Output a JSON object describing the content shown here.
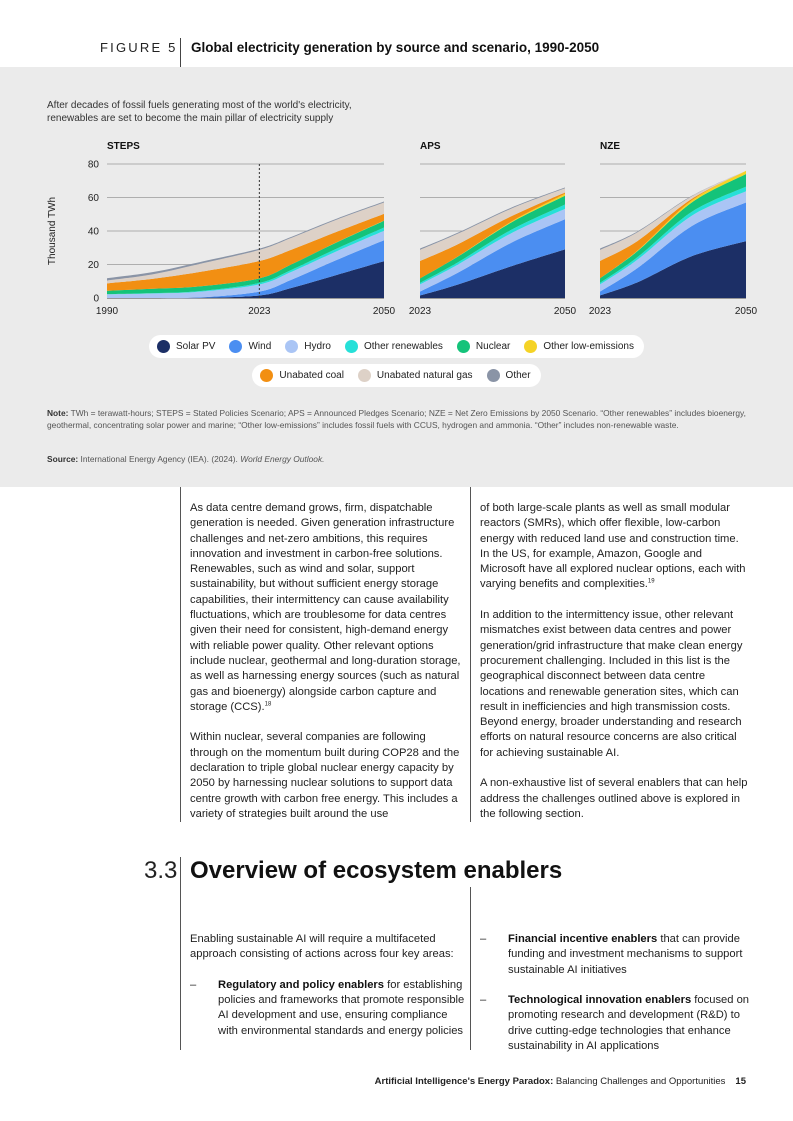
{
  "figure": {
    "label": "FIGURE 5",
    "title": "Global electricity generation by source and scenario, 1990-2050",
    "subtitle": "After decades of fossil fuels generating most of the world's electricity, renewables are set to become the main pillar of electricity supply",
    "note_label": "Note:",
    "note_text": "TWh = terawatt-hours; STEPS = Stated Policies Scenario; APS = Announced Pledges Scenario; NZE = Net Zero Emissions by 2050 Scenario. “Other renewables” includes bioenergy, geothermal, concentrating solar power and marine; “Other low-emissions” includes fossil fuels with CCUS, hydrogen and ammonia. “Other” includes non-renewable waste.",
    "source_label": "Source:",
    "source_text": "International Energy Agency (IEA). (2024). ",
    "source_italic": "World Energy Outlook."
  },
  "chart_data": {
    "type": "area",
    "stacked": true,
    "ylabel": "Thousand TWh",
    "ylim": [
      0,
      80
    ],
    "yticks": [
      0,
      20,
      40,
      60,
      80
    ],
    "grid": true,
    "legend_position": "bottom",
    "series_names": [
      "Solar PV",
      "Wind",
      "Hydro",
      "Other renewables",
      "Nuclear",
      "Other low-emissions",
      "Unabated coal",
      "Unabated natural gas",
      "Other"
    ],
    "colors": [
      "#1c2f66",
      "#4b8ef1",
      "#aac5f5",
      "#26e0d8",
      "#14c37a",
      "#f5d326",
      "#f28f12",
      "#ddd1c7",
      "#8a94a6"
    ],
    "panels": [
      {
        "name": "STEPS",
        "x": [
          1990,
          2000,
          2010,
          2023,
          2030,
          2040,
          2050
        ],
        "xtick_labels": [
          "1990",
          "2023",
          "2050"
        ],
        "marker_year": 2023,
        "series": [
          {
            "name": "Solar PV",
            "values": [
              0,
              0,
              0,
              1.5,
              6,
              14,
              22
            ]
          },
          {
            "name": "Wind",
            "values": [
              0,
              0,
              0.3,
              2.3,
              5,
              9,
              12.5
            ]
          },
          {
            "name": "Hydro",
            "values": [
              2.2,
              2.7,
              3.4,
              4.3,
              4.7,
              5.2,
              5.6
            ]
          },
          {
            "name": "Other renewables",
            "values": [
              0.1,
              0.2,
              0.4,
              0.9,
              1.2,
              1.6,
              2
            ]
          },
          {
            "name": "Nuclear",
            "values": [
              2,
              2.6,
              2.8,
              2.7,
              3.2,
              3.7,
              4
            ]
          },
          {
            "name": "Other low-emissions",
            "values": [
              0,
              0,
              0,
              0,
              0,
              0.05,
              0.1
            ]
          },
          {
            "name": "Unabated coal",
            "values": [
              4.4,
              6,
              8.6,
              10.4,
              8.8,
              6.2,
              4
            ]
          },
          {
            "name": "Unabated natural gas",
            "values": [
              1.7,
              2.7,
              4.8,
              6.6,
              7.1,
              7.3,
              6.8
            ]
          },
          {
            "name": "Other",
            "values": [
              1.4,
              1.3,
              1.1,
              0.8,
              0.6,
              0.6,
              0.6
            ]
          }
        ]
      },
      {
        "name": "APS",
        "x": [
          2023,
          2030,
          2040,
          2050
        ],
        "xtick_labels": [
          "2023",
          "2050"
        ],
        "series": [
          {
            "name": "Solar PV",
            "values": [
              1.5,
              8,
              19,
              29
            ]
          },
          {
            "name": "Wind",
            "values": [
              2.3,
              7,
              14,
              18
            ]
          },
          {
            "name": "Hydro",
            "values": [
              4.3,
              4.9,
              5.7,
              6.2
            ]
          },
          {
            "name": "Other renewables",
            "values": [
              0.9,
              1.3,
              2,
              2.6
            ]
          },
          {
            "name": "Nuclear",
            "values": [
              2.7,
              3.4,
              4.4,
              5.2
            ]
          },
          {
            "name": "Other low-emissions",
            "values": [
              0,
              0.1,
              0.5,
              1.2
            ]
          },
          {
            "name": "Unabated coal",
            "values": [
              10.4,
              7.3,
              3.2,
              0.8
            ]
          },
          {
            "name": "Unabated natural gas",
            "values": [
              6.6,
              6.3,
              4.6,
              2.5
            ]
          },
          {
            "name": "Other",
            "values": [
              0.8,
              0.6,
              0.6,
              0.5
            ]
          }
        ]
      },
      {
        "name": "NZE",
        "x": [
          2023,
          2030,
          2040,
          2050
        ],
        "xtick_labels": [
          "2023",
          "2050"
        ],
        "series": [
          {
            "name": "Solar PV",
            "values": [
              1.5,
              9.5,
              25,
              34
            ]
          },
          {
            "name": "Wind",
            "values": [
              2.3,
              8.5,
              18,
              23
            ]
          },
          {
            "name": "Hydro",
            "values": [
              4.3,
              5.1,
              6.2,
              6.7
            ]
          },
          {
            "name": "Other renewables",
            "values": [
              0.9,
              1.5,
              2.3,
              2.8
            ]
          },
          {
            "name": "Nuclear",
            "values": [
              2.7,
              3.6,
              5.6,
              7.5
            ]
          },
          {
            "name": "Other low-emissions",
            "values": [
              0,
              0.3,
              1.2,
              2
            ]
          },
          {
            "name": "Unabated coal",
            "values": [
              10.4,
              5.7,
              0.9,
              0
            ]
          },
          {
            "name": "Unabated natural gas",
            "values": [
              6.6,
              5.2,
              1.6,
              0
            ]
          },
          {
            "name": "Other",
            "values": [
              0.8,
              0.5,
              0.2,
              0
            ]
          }
        ]
      }
    ]
  },
  "col_left": {
    "p1": "As data centre demand grows, firm, dispatchable generation is needed. Given generation infrastructure challenges and net-zero ambitions, this requires innovation and investment in carbon-free solutions. Renewables, such as wind and solar, support sustainability, but without sufficient energy storage capabilities, their intermittency can cause availability fluctuations, which are troublesome for data centres given their need for consistent, high-demand energy with reliable power quality. Other relevant options include nuclear, geothermal and long-duration storage, as well as harnessing energy sources (such as natural gas and bioenergy) alongside carbon capture and storage (CCS).",
    "p1_ref": "18",
    "p2": "Within nuclear, several companies are following through on the momentum built during COP28 and the declaration to triple global nuclear energy capacity by 2050  by harnessing nuclear solutions to support data centre growth with carbon free energy. This includes a variety of strategies built around the use"
  },
  "col_right": {
    "p1": "of both large-scale plants as well as small modular reactors (SMRs), which offer flexible, low-carbon energy with reduced land use and construction time. In the US, for example, Amazon, Google and Microsoft have all explored nuclear options, each with varying benefits and complexities.",
    "p1_ref": "19",
    "p2": "In addition to the intermittency issue, other relevant mismatches exist between data centres and power generation/grid infrastructure that make clean energy procurement challenging. Included in this list is the geographical disconnect between data centre locations and renewable generation sites, which can result in inefficiencies and high transmission costs. Beyond energy, broader understanding and research efforts on natural resource concerns are also critical for achieving sustainable AI.",
    "p3": "A non-exhaustive list of several enablers that can help address the challenges outlined above is explored in the following section."
  },
  "section": {
    "number": "3.3",
    "title": "Overview of ecosystem enablers",
    "intro": "Enabling sustainable AI will require a multifaceted approach consisting of actions across four key areas:",
    "dash": "–",
    "b1_bold": "Regulatory and policy enablers",
    "b1_rest": " for establishing policies and frameworks that promote responsible AI development and use, ensuring compliance with environmental standards and energy policies",
    "b2_bold": "Financial incentive enablers",
    "b2_rest": " that can  provide funding and investment mechanisms to support sustainable AI initiatives",
    "b3_bold": "Technological innovation enablers",
    "b3_rest": " focused on promoting research and development (R&D) to drive cutting-edge technologies that enhance sustainability in AI applications"
  },
  "footer": {
    "bold": "Artificial Intelligence's Energy Paradox:",
    "rest": " Balancing Challenges and Opportunities",
    "page": "15"
  }
}
